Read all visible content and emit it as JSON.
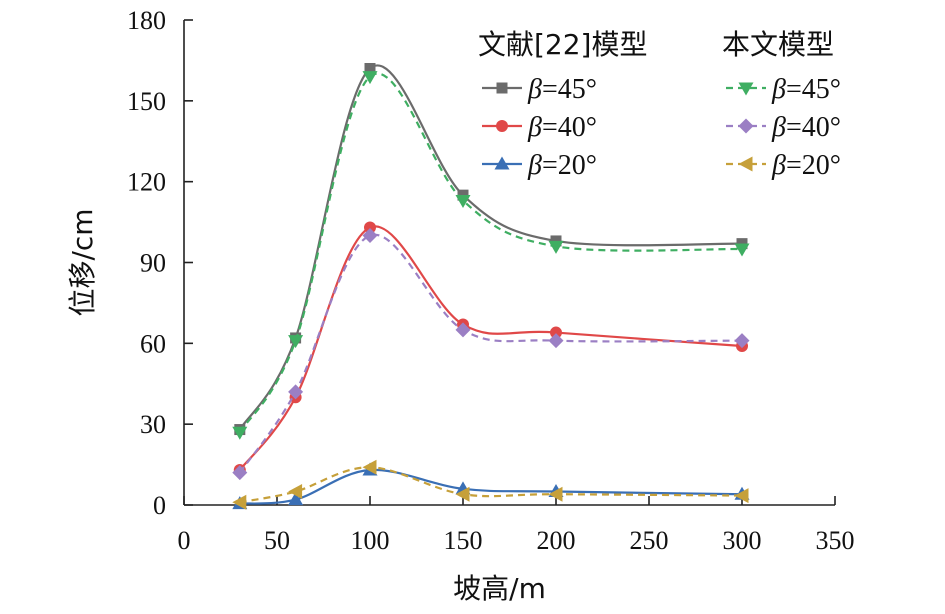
{
  "chart_data": {
    "type": "line",
    "title": "",
    "xlabel": "坡高/m",
    "ylabel": "位移/cm",
    "xlim": [
      0,
      350
    ],
    "ylim": [
      0,
      180
    ],
    "xticks": [
      0,
      50,
      100,
      150,
      200,
      250,
      300,
      350
    ],
    "yticks": [
      0,
      30,
      60,
      90,
      120,
      150,
      180
    ],
    "grid": false,
    "legend_groups": [
      {
        "title": "文献[22]模型",
        "position": "top-center"
      },
      {
        "title": "本文模型",
        "position": "top-right"
      }
    ],
    "x": [
      30,
      60,
      100,
      150,
      200,
      300
    ],
    "series": [
      {
        "name": "β=45°",
        "symbol": "β",
        "label_rest": "=45°",
        "group": 0,
        "color": "#6b6b6b",
        "marker": "square",
        "dash": false,
        "values": [
          28,
          62,
          162,
          115,
          98,
          97
        ]
      },
      {
        "name": "β=40°",
        "symbol": "β",
        "label_rest": "=40°",
        "group": 0,
        "color": "#e04848",
        "marker": "circle",
        "dash": false,
        "values": [
          13,
          40,
          103,
          67,
          64,
          59
        ]
      },
      {
        "name": "β=20°",
        "symbol": "β",
        "label_rest": "=20°",
        "group": 0,
        "color": "#3a6fb5",
        "marker": "triangle-up",
        "dash": false,
        "values": [
          0.5,
          2,
          13,
          6,
          5,
          4
        ]
      },
      {
        "name": "β=45°",
        "symbol": "β",
        "label_rest": "=45°",
        "group": 1,
        "color": "#3fae62",
        "marker": "triangle-down",
        "dash": true,
        "values": [
          27,
          61,
          159,
          113,
          96,
          95
        ]
      },
      {
        "name": "β=40°",
        "symbol": "β",
        "label_rest": "=40°",
        "group": 1,
        "color": "#9b7fc4",
        "marker": "diamond",
        "dash": true,
        "values": [
          12,
          42,
          100,
          65,
          61,
          61
        ]
      },
      {
        "name": "β=20°",
        "symbol": "β",
        "label_rest": "=20°",
        "group": 1,
        "color": "#c6a03a",
        "marker": "triangle-left",
        "dash": true,
        "values": [
          1,
          5,
          14,
          4,
          4,
          3.5
        ]
      }
    ]
  }
}
